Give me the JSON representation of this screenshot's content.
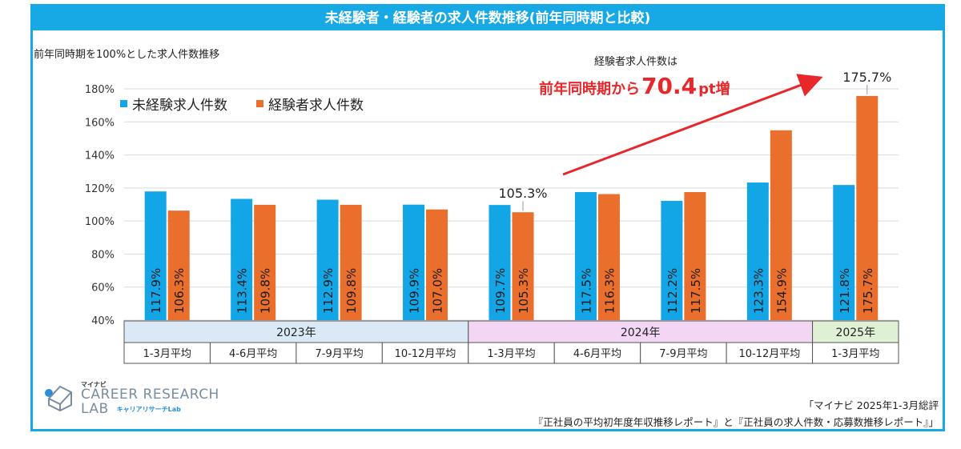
{
  "header": {
    "title": "未経験者・経験者の求人件数推移(前年同時期と比較)"
  },
  "subtitle": "前年同時期を100%とした求人件数推移",
  "callout": {
    "line1": "経験者求人件数は",
    "line2_prefix": "前年同時期から",
    "line2_value": "70.4",
    "line2_suffix": "pt増"
  },
  "chart_data": {
    "type": "bar",
    "ylim": [
      40,
      180
    ],
    "yticks": [
      40,
      60,
      80,
      100,
      120,
      140,
      160,
      180
    ],
    "ytick_labels": [
      "40%",
      "60%",
      "80%",
      "100%",
      "120%",
      "140%",
      "160%",
      "180%"
    ],
    "grid": true,
    "legend_placement": "top-left",
    "categories": [
      "1-3月平均",
      "4-6月平均",
      "7-9月平均",
      "10-12月平均",
      "1-3月平均",
      "4-6月平均",
      "7-9月平均",
      "10-12月平均",
      "1-3月平均"
    ],
    "year_groups": [
      {
        "label": "2023年",
        "count": 4,
        "color": "#dbe9f7"
      },
      {
        "label": "2024年",
        "count": 4,
        "color": "#f3d6f3"
      },
      {
        "label": "2025年",
        "count": 1,
        "color": "#dff0d5"
      }
    ],
    "series": [
      {
        "name": "未経験求人件数",
        "color": "#12a6e6",
        "values": [
          117.9,
          113.4,
          112.9,
          109.9,
          109.7,
          117.5,
          112.2,
          123.3,
          121.8
        ],
        "labels": [
          "117.9%",
          "113.4%",
          "112.9%",
          "109.9%",
          "109.7%",
          "117.5%",
          "112.2%",
          "123.3%",
          "121.8%"
        ]
      },
      {
        "name": "経験者求人件数",
        "color": "#ea6f2d",
        "values": [
          106.3,
          109.8,
          109.8,
          107.0,
          105.3,
          116.3,
          117.5,
          154.9,
          175.7
        ],
        "labels": [
          "106.3%",
          "109.8%",
          "109.8%",
          "107.0%",
          "105.3%",
          "116.3%",
          "117.5%",
          "154.9%",
          "175.7%"
        ]
      }
    ],
    "annotations": [
      {
        "series": 1,
        "index": 4,
        "text": "105.3%"
      },
      {
        "series": 1,
        "index": 8,
        "text": "175.7%"
      }
    ],
    "arrow_color": "#e8272a"
  },
  "logo": {
    "top": "マイナビ",
    "main1": "CAREER RESEARCH",
    "main2": "LAB",
    "sub": "キャリアリサーチLab"
  },
  "source": {
    "line1": "「マイナビ 2025年1-3月総評",
    "line2": "『正社員の平均初年度年収推移レポート』と『正社員の求人件数・応募数推移レポート』」"
  }
}
